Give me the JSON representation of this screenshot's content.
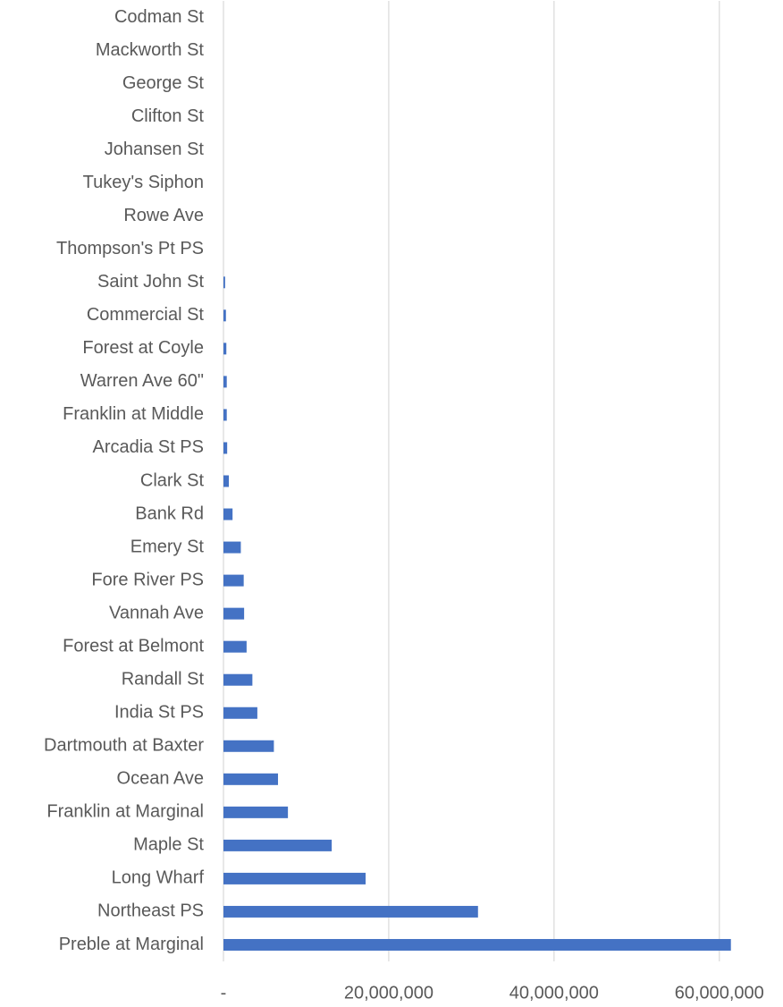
{
  "chart_data": {
    "type": "barh",
    "categories": [
      "Codman St",
      "Mackworth St",
      "George St",
      "Clifton St",
      "Johansen St",
      "Tukey's Siphon",
      "Rowe Ave",
      "Thompson's Pt PS",
      "Saint John St",
      "Commercial St",
      "Forest at Coyle",
      "Warren Ave 60\"",
      "Franklin at Middle",
      "Arcadia St PS",
      "Clark St",
      "Bank Rd",
      "Emery St",
      "Fore River PS",
      "Vannah Ave",
      "Forest at Belmont",
      "Randall St",
      "India St PS",
      "Dartmouth at Baxter",
      "Ocean Ave",
      "Franklin at Marginal",
      "Maple St",
      "Long Wharf",
      "Northeast PS",
      "Preble at Marginal"
    ],
    "values": [
      0,
      0,
      0,
      0,
      0,
      0,
      0,
      0,
      200000,
      300000,
      350000,
      400000,
      400000,
      450000,
      650000,
      1100000,
      2100000,
      2450000,
      2500000,
      2800000,
      3500000,
      4100000,
      6100000,
      6600000,
      7800000,
      13100000,
      17200000,
      30800000,
      61400000
    ],
    "color": "#4472c4",
    "xlim": [
      0,
      65000000
    ],
    "xticks": [
      {
        "value": 0,
        "label": "-"
      },
      {
        "value": 20000000,
        "label": "20,000,000"
      },
      {
        "value": 40000000,
        "label": "40,000,000"
      },
      {
        "value": 60000000,
        "label": "60,000,000"
      }
    ],
    "grid": true
  }
}
